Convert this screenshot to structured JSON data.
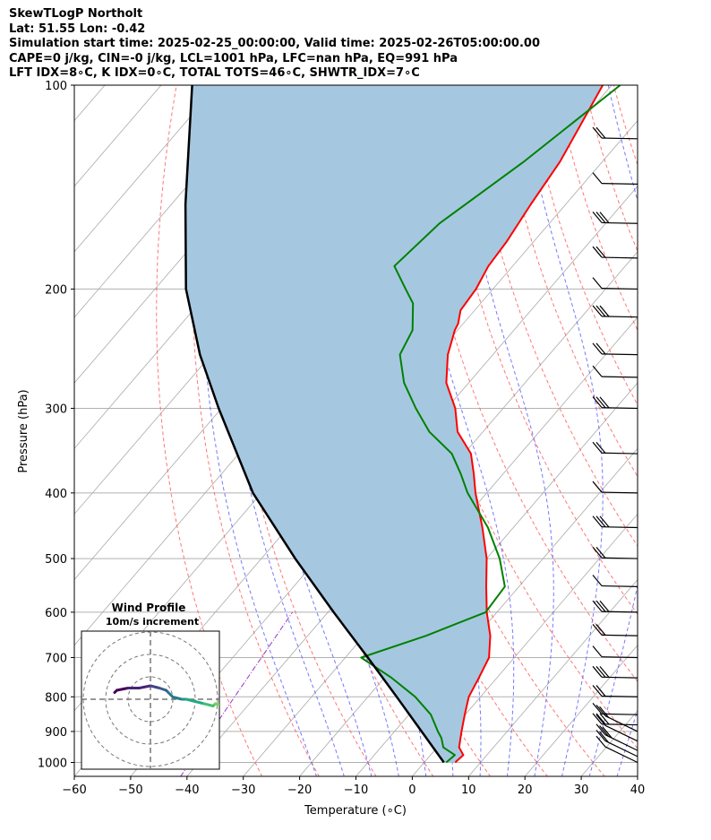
{
  "header": {
    "lines": [
      "SkewTLogP Northolt",
      "Lat: 51.55   Lon: -0.42",
      "Simulation start time: 2025-02-25_00:00:00, Valid time: 2025-02-26T05:00:00.00",
      "CAPE=0 j/kg, CIN=-0 j/kg, LCL=1001 hPa, LFC=nan hPa, EQ=991 hPa",
      "LFT IDX=8∘C, K IDX=0∘C, TOTAL TOTS=46∘C, SHWTR_IDX=7∘C"
    ]
  },
  "chart_data": {
    "type": "line",
    "title": "SkewTLogP Northolt",
    "xlabel": "Temperature (∘C)",
    "ylabel": "Pressure (hPa)",
    "xlim": [
      -60,
      40
    ],
    "ylim": [
      1050,
      100
    ],
    "x_ticks": [
      -60,
      -50,
      -40,
      -30,
      -20,
      -10,
      0,
      10,
      20,
      30,
      40
    ],
    "x_tick_labels": [
      "−60",
      "−50",
      "−40",
      "−30",
      "−20",
      "−10",
      "0",
      "10",
      "20",
      "30",
      "40"
    ],
    "y_ticks": [
      1000,
      900,
      800,
      700,
      600,
      500,
      400,
      300,
      200,
      100
    ],
    "y_tick_labels": [
      "1000",
      "900",
      "800",
      "700",
      "600",
      "500",
      "400",
      "300",
      "200",
      "100"
    ],
    "colors": {
      "temperature": "#ff0000",
      "dewpoint": "#008000",
      "parcel": "#000000",
      "fill": "#a5c8e0",
      "dry_adiabat": "#ff5555",
      "moist_adiabat": "#5555ff",
      "mixing_ratio": "#9933cc",
      "isotherm": "#aaaaaa",
      "grid": "#b0b0b0"
    },
    "series": [
      {
        "name": "Temperature",
        "pressure": [
          1000,
          975,
          950,
          900,
          850,
          800,
          750,
          700,
          650,
          600,
          550,
          500,
          450,
          400,
          375,
          350,
          325,
          300,
          275,
          250,
          230,
          225,
          215,
          200,
          185,
          170,
          150,
          130,
          115,
          100
        ],
        "values": [
          5.5,
          5.8,
          3.9,
          1.9,
          -0.1,
          -2.1,
          -3.2,
          -4.5,
          -7.6,
          -11.8,
          -15.8,
          -20.0,
          -25.5,
          -32.0,
          -35.2,
          -38.8,
          -44.5,
          -48.5,
          -54.0,
          -58.0,
          -60.5,
          -60.9,
          -62.5,
          -63.0,
          -64.3,
          -64.8,
          -66.2,
          -67.5,
          -69.4,
          -71.6
        ]
      },
      {
        "name": "Dewpoint",
        "pressure": [
          1000,
          975,
          950,
          920,
          900,
          850,
          800,
          750,
          700,
          650,
          600,
          550,
          500,
          450,
          400,
          375,
          350,
          325,
          300,
          275,
          250,
          230,
          210,
          200,
          185,
          160,
          130,
          100
        ],
        "values": [
          3.9,
          4.3,
          1.1,
          -0.7,
          -2.3,
          -6.1,
          -11.6,
          -18.7,
          -27.2,
          -19.0,
          -12.0,
          -12.5,
          -17.7,
          -24.5,
          -33.4,
          -37.5,
          -42.2,
          -49.5,
          -55.5,
          -61.5,
          -66.5,
          -68.0,
          -72.0,
          -75.5,
          -81.0,
          -79.5,
          -74.0,
          -68.5
        ]
      },
      {
        "name": "Parcel",
        "pressure": [
          1000,
          900,
          800,
          700,
          600,
          500,
          400,
          300,
          250,
          200,
          150,
          100
        ],
        "values": [
          3.5,
          -5.2,
          -14.9,
          -26.0,
          -39.0,
          -54.0,
          -71.5,
          -90.5,
          -102.0,
          -114.5,
          -127.5,
          -144.5
        ]
      }
    ],
    "wind_barbs_pressure": [
      1000,
      980,
      960,
      930,
      900,
      880,
      850,
      800,
      750,
      700,
      650,
      600,
      550,
      500,
      450,
      400,
      350,
      300,
      270,
      250,
      220,
      200,
      180,
      160,
      140,
      120
    ],
    "inset": {
      "title": "Wind Profile",
      "subtitle": "10m/s increment",
      "ring_speeds": [
        10,
        20,
        30
      ],
      "hodograph_u": [
        -16,
        -15,
        -10,
        -5,
        0,
        4,
        7,
        8,
        10,
        14,
        16,
        20,
        24,
        28,
        29,
        33,
        38,
        45,
        52
      ],
      "hodograph_v": [
        3,
        4,
        5,
        5,
        6,
        5,
        4,
        3,
        1,
        0,
        0,
        -1,
        -2,
        -3,
        -2,
        -3,
        -4,
        -5,
        -6
      ],
      "hodograph_colors": [
        "#440154",
        "#482475",
        "#414487",
        "#355f8d",
        "#2a788e",
        "#21918c",
        "#22a884",
        "#44bf70",
        "#7ad151",
        "#bddf26",
        "#fde725"
      ]
    }
  }
}
